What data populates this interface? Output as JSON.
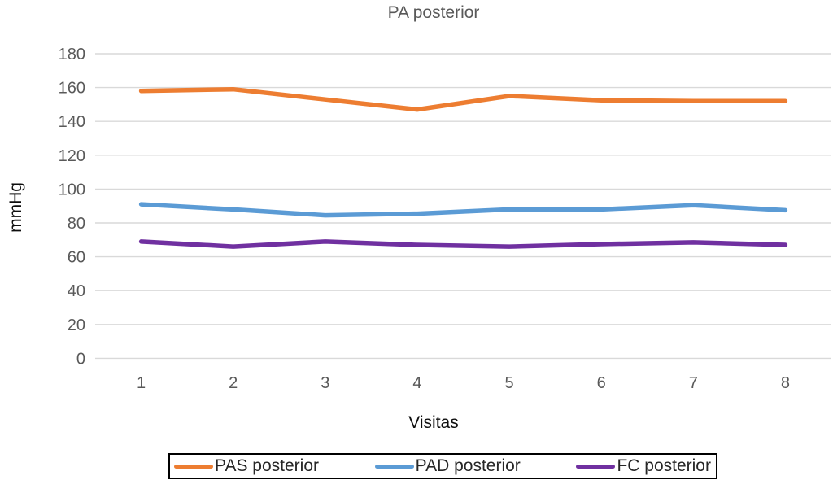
{
  "chart_data": {
    "type": "line",
    "title": "PA posterior",
    "xlabel": "Visitas",
    "ylabel": "mmHg",
    "categories": [
      "1",
      "2",
      "3",
      "4",
      "5",
      "6",
      "7",
      "8"
    ],
    "series": [
      {
        "name": "PAS posterior",
        "color": "#ED7D31",
        "values": [
          158,
          159,
          153,
          147,
          155,
          152.5,
          152,
          152
        ]
      },
      {
        "name": "PAD posterior",
        "color": "#5B9BD5",
        "values": [
          91,
          88,
          84.5,
          85.5,
          88,
          88,
          90.5,
          87.5
        ]
      },
      {
        "name": "FC posterior",
        "color": "#7030A0",
        "values": [
          69,
          66,
          69,
          67,
          66,
          67.5,
          68.5,
          67
        ]
      }
    ],
    "ylim": [
      0,
      180
    ],
    "ytick_step": 20,
    "grid": true,
    "legend_position": "bottom",
    "colors": {
      "grid": "#D9D9D9",
      "tick_text": "#595959",
      "title_text": "#595959",
      "axis_title_text": "#0d0d0d",
      "legend_text": "#262626",
      "legend_border": "#000000",
      "background": "#ffffff"
    }
  }
}
